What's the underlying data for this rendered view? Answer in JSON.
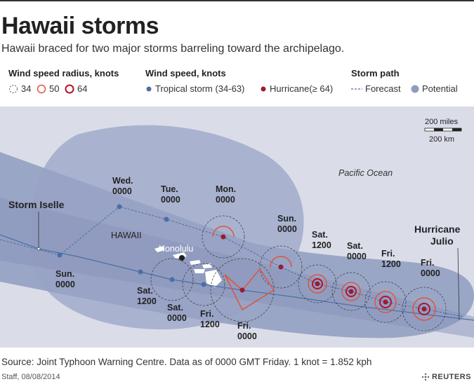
{
  "header": {
    "title": "Hawaii storms",
    "subtitle": "Hawaii braced for two major storms barreling toward the archipelago."
  },
  "legend": {
    "radius": {
      "heading": "Wind speed radius, knots",
      "items": [
        {
          "label": "34",
          "style": "dotted"
        },
        {
          "label": "50",
          "style": "light-red"
        },
        {
          "label": "64",
          "style": "dark-red"
        }
      ]
    },
    "wind": {
      "heading": "Wind speed, knots",
      "items": [
        {
          "label": "Tropical storm  (34-63)",
          "color": "#4a6fa5"
        },
        {
          "label": "Hurricane(≥ 64)",
          "color": "#9b1b30"
        }
      ]
    },
    "path": {
      "heading": "Storm path",
      "items": [
        {
          "label": "Forecast",
          "style": "dashed"
        },
        {
          "label": "Potential",
          "color": "#8f9cc0"
        }
      ]
    }
  },
  "map": {
    "ocean_label": "Pacific Ocean",
    "region_label": "HAWAII",
    "city_label": "Honolulu",
    "scale": {
      "miles": "200 miles",
      "km": "200 km"
    },
    "storms": {
      "iselle": {
        "name": "Storm Iselle"
      },
      "julio": {
        "name_line1": "Hurricane",
        "name_line2": "Julio"
      }
    },
    "labels": {
      "iselle_wed": [
        "Wed.",
        "0000"
      ],
      "iselle_tue": [
        "Tue.",
        "0000"
      ],
      "iselle_mon": [
        "Mon.",
        "0000"
      ],
      "iselle_sun": [
        "Sun.",
        "0000"
      ],
      "iselle_sat1200": [
        "Sat.",
        "1200"
      ],
      "iselle_sat0000": [
        "Sat.",
        "0000"
      ],
      "iselle_fri1200": [
        "Fri.",
        "1200"
      ],
      "iselle_fri0000": [
        "Fri.",
        "0000"
      ],
      "julio_sun": [
        "Sun.",
        "0000"
      ],
      "julio_sat1200": [
        "Sat.",
        "1200"
      ],
      "julio_sat0000": [
        "Sat.",
        "0000"
      ],
      "julio_fri1200": [
        "Fri.",
        "1200"
      ],
      "julio_fri0000": [
        "Fri.",
        "0000"
      ]
    }
  },
  "colors": {
    "ocean": "#dadde8",
    "cone": "#9aa5c6",
    "cone_inner": "#8793b9",
    "tropical": "#4a6fa5",
    "hurricane": "#9b1b30",
    "radius50": "#e0553a",
    "radius64": "#b5122e",
    "land": "#ffffff"
  },
  "footer": {
    "source": "Source: Joint Typhoon Warning Centre. Data as of 0000 GMT Friday. 1 knot = 1.852 kph",
    "credit": "Staff, 08/08/2014",
    "brand": "REUTERS"
  }
}
